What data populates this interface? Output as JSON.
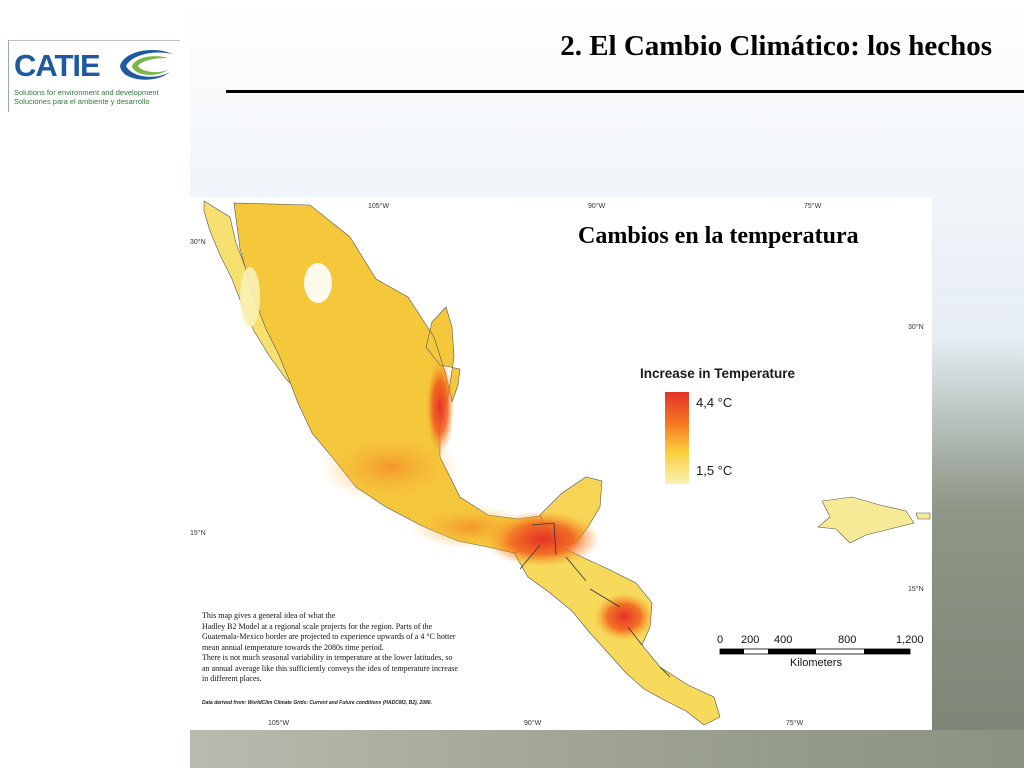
{
  "slide": {
    "title": "2. El Cambio Climático: los hechos"
  },
  "logo": {
    "wordmark": "CATIE",
    "tagline_en": "Solutions for environment and development",
    "tagline_es": "Soluciones para el ambiente y desarrollo",
    "brand_color": "#1f5aa0",
    "tagline_color": "#2d7a3c"
  },
  "map": {
    "subtitle": "Cambios en la temperatura",
    "legend": {
      "title": "Increase in Temperature",
      "high_label": "4,4 °C",
      "low_label": "1,5 °C",
      "high_color": "#e5322a",
      "low_color": "#fbf1b6"
    },
    "graticule": {
      "top": [
        "105°W",
        "90°W",
        "75°W"
      ],
      "bottom": [
        "105°W",
        "90°W",
        "75°W"
      ],
      "left": [
        "30°N",
        "15°N"
      ],
      "right": [
        "30°N",
        "15°N"
      ]
    },
    "scale": {
      "ticks": [
        "0",
        "200",
        "400",
        "800",
        "1,200"
      ],
      "unit": "Kilometers"
    },
    "note_lines": [
      "This map gives a general idea of what the",
      "Hadley B2 Model at a regional scale projects for the region.  Parts of the",
      "Guatemala-Mexico border are projected to experience upwards of a 4 °C hotter",
      "mean annual temperature towards the 2080s time period.",
      "There is not much seasonal variability in temperature at the lower latitudes, so",
      "an annual average like this sufficiently conveys the idea of temperature increase",
      "in different places."
    ],
    "source": "Data derived from: WorldClim Climate Grids: Current and Future conditions (HADCM3, B2), 2080."
  }
}
